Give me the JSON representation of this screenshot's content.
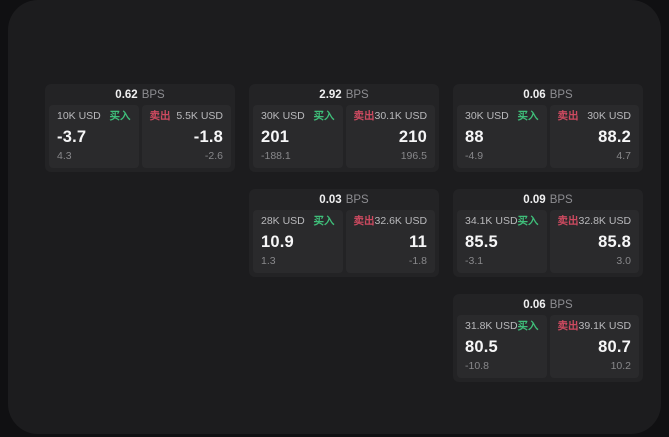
{
  "labels": {
    "buy": "买入",
    "sell": "卖出",
    "bps_unit": "BPS"
  },
  "colors": {
    "buy_green": "#3fbf7a",
    "sell_red": "#cd4a60",
    "window_bg": "#1c1c1e",
    "card_bg": "#232325",
    "panel_bg": "#2a2a2c",
    "backdrop": "#101012"
  },
  "cards": [
    {
      "bps": "0.62",
      "buy": {
        "size": "10K USD",
        "price": "-3.7",
        "change": "4.3"
      },
      "sell": {
        "size": "5.5K USD",
        "price": "-1.8",
        "change": "-2.6"
      }
    },
    {
      "bps": "2.92",
      "buy": {
        "size": "30K USD",
        "price": "201",
        "change": "-188.1"
      },
      "sell": {
        "size": "30.1K USD",
        "price": "210",
        "change": "196.5"
      }
    },
    {
      "bps": "0.06",
      "buy": {
        "size": "30K USD",
        "price": "88",
        "change": "-4.9"
      },
      "sell": {
        "size": "30K USD",
        "price": "88.2",
        "change": "4.7"
      }
    },
    {
      "bps": "0.03",
      "buy": {
        "size": "28K USD",
        "price": "10.9",
        "change": "1.3"
      },
      "sell": {
        "size": "32.6K USD",
        "price": "11",
        "change": "-1.8"
      }
    },
    {
      "bps": "0.09",
      "buy": {
        "size": "34.1K USD",
        "price": "85.5",
        "change": "-3.1"
      },
      "sell": {
        "size": "32.8K USD",
        "price": "85.8",
        "change": "3.0"
      }
    },
    {
      "bps": "0.06",
      "buy": {
        "size": "31.8K USD",
        "price": "80.5",
        "change": "-10.8"
      },
      "sell": {
        "size": "39.1K USD",
        "price": "80.7",
        "change": "10.2"
      }
    }
  ]
}
